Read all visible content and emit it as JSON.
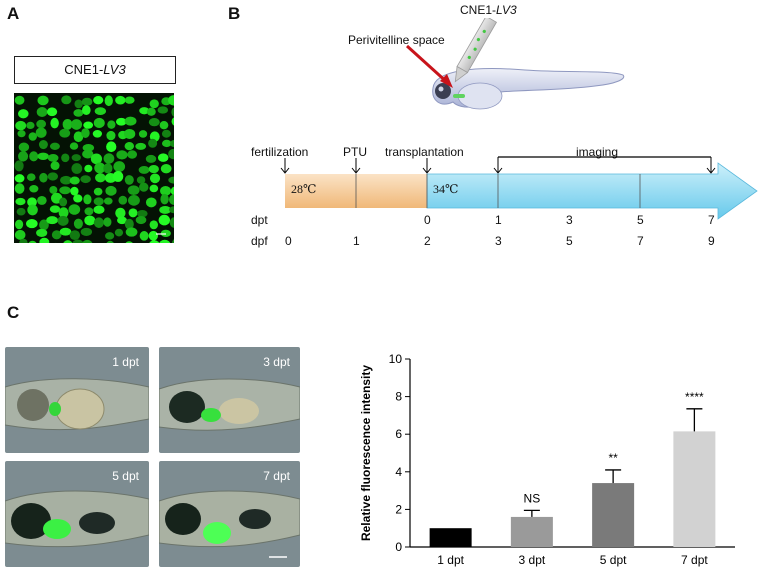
{
  "panels": {
    "a": "A",
    "b": "B",
    "c": "C"
  },
  "panel_a": {
    "cell_line": "CNE1-",
    "cell_line_italic": "LV3"
  },
  "panel_b": {
    "injection_label": "CNE1-",
    "injection_label_italic": "LV3",
    "site_label": "Perivitelline space",
    "events": [
      "fertilization",
      "PTU",
      "transplantation"
    ],
    "imaging_label": "imaging",
    "temps": [
      "28℃",
      "34℃"
    ],
    "dpt_label": "dpt",
    "dpf_label": "dpf",
    "dpt_values": [
      "0",
      "1",
      "3",
      "5",
      "7"
    ],
    "dpf_values": [
      "0",
      "1",
      "2",
      "3",
      "5",
      "7",
      "9"
    ]
  },
  "panel_c": {
    "photos": [
      "1 dpt",
      "3 dpt",
      "5 dpt",
      "7 dpt"
    ]
  },
  "chart_data": {
    "type": "bar",
    "ylabel": "Relative fluorescence intensity",
    "categories": [
      "1 dpt",
      "3 dpt",
      "5 dpt",
      "7 dpt"
    ],
    "values": [
      1.0,
      1.6,
      3.4,
      6.15
    ],
    "errors": [
      0.0,
      0.35,
      0.7,
      1.2
    ],
    "significance": [
      "",
      "NS",
      "**",
      "****"
    ],
    "colors": [
      "#000000",
      "#9a9a9a",
      "#7a7a7a",
      "#d2d2d2"
    ],
    "ylim": [
      0,
      10
    ],
    "yticks": [
      0,
      2,
      4,
      6,
      8,
      10
    ]
  }
}
